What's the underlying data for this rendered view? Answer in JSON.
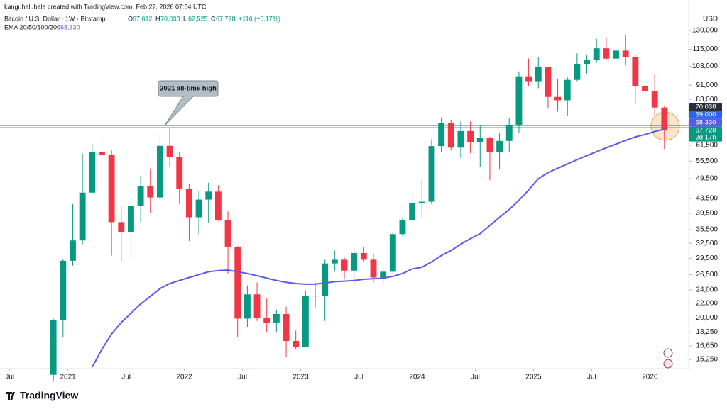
{
  "chart_data": {
    "type": "candlestick",
    "watermark": "kanguhalubale created with TradingView.com, Feb 27, 2026 07:54 UTC",
    "title": "Bitcoin / U.S. Dollar · 1W · Bitstamp",
    "ohlc": [
      {
        "key": "O",
        "value": "67,612"
      },
      {
        "key": "H",
        "value": "70,038"
      },
      {
        "key": "L",
        "value": "62,525"
      },
      {
        "key": "C",
        "value": "67,728"
      }
    ],
    "change": "+116 (+0.17%)",
    "indicator": "EMA 20/50/100/200",
    "indicator_value": "68,330",
    "currency": "USD",
    "annotation": "2021 all-time high",
    "brand": "TradingView",
    "log": true,
    "grid": false,
    "up_color": "#089981",
    "down_color": "#f23645",
    "x": [
      "2020-11",
      "2020-12",
      "2021-01",
      "2021-02",
      "2021-03",
      "2021-04",
      "2021-05",
      "2021-06",
      "2021-07",
      "2021-08",
      "2021-09",
      "2021-10",
      "2021-11",
      "2021-12",
      "2022-01",
      "2022-02",
      "2022-03",
      "2022-04",
      "2022-05",
      "2022-06",
      "2022-07",
      "2022-08",
      "2022-09",
      "2022-10",
      "2022-11",
      "2022-12",
      "2023-01",
      "2023-02",
      "2023-03",
      "2023-04",
      "2023-05",
      "2023-06",
      "2023-07",
      "2023-08",
      "2023-09",
      "2023-10",
      "2023-11",
      "2023-12",
      "2024-01",
      "2024-02",
      "2024-03",
      "2024-04",
      "2024-05",
      "2024-06",
      "2024-07",
      "2024-08",
      "2024-09",
      "2024-10",
      "2024-11",
      "2024-12",
      "2025-01",
      "2025-02",
      "2025-03",
      "2025-04",
      "2025-05",
      "2025-06",
      "2025-07",
      "2025-08",
      "2025-09",
      "2025-10",
      "2025-11",
      "2025-12",
      "2026-01",
      "2026-02"
    ],
    "open": [
      13800,
      19700,
      29000,
      33100,
      45200,
      58800,
      57700,
      37300,
      35000,
      41500,
      47100,
      43800,
      61300,
      57000,
      46200,
      38500,
      43200,
      45500,
      37700,
      31800,
      19900,
      23300,
      20000,
      19400,
      20500,
      17200,
      16500,
      23100,
      23100,
      28500,
      29200,
      27200,
      30500,
      29200,
      26000,
      27000,
      34500,
      37700,
      42300,
      42600,
      61200,
      71300,
      60600,
      67500,
      62700,
      64600,
      59000,
      63300,
      70200,
      96400,
      93400,
      102400,
      84300,
      82500,
      94200,
      104600,
      107100,
      115700,
      108200,
      114000,
      109500,
      90400,
      87500,
      78700
    ],
    "high": [
      19900,
      29300,
      41900,
      58300,
      61700,
      64800,
      59500,
      41300,
      42400,
      50500,
      52900,
      67000,
      69000,
      59100,
      47900,
      45800,
      48200,
      47400,
      40000,
      31900,
      24700,
      25200,
      22800,
      21100,
      21500,
      18400,
      23900,
      25200,
      29200,
      31000,
      29800,
      31400,
      31800,
      30200,
      27500,
      35000,
      38400,
      44700,
      48900,
      64000,
      73800,
      72700,
      71900,
      71900,
      70000,
      65000,
      66500,
      73600,
      99600,
      108300,
      109600,
      102500,
      95000,
      95800,
      112000,
      110500,
      123200,
      124400,
      117900,
      126200,
      110600,
      94600,
      97900,
      79500
    ],
    "low": [
      13200,
      17600,
      28100,
      32300,
      45000,
      47000,
      30000,
      28800,
      29300,
      37300,
      39600,
      43300,
      53300,
      42000,
      33000,
      34300,
      37200,
      37600,
      26700,
      17600,
      18800,
      19600,
      18200,
      18200,
      15500,
      16300,
      16500,
      21400,
      19600,
      27000,
      25800,
      24800,
      28900,
      25200,
      24900,
      26500,
      34000,
      37600,
      38500,
      41900,
      59000,
      59600,
      56600,
      58400,
      53500,
      49000,
      52500,
      58900,
      66800,
      90500,
      89200,
      78200,
      76600,
      74400,
      93400,
      98200,
      105300,
      107300,
      107300,
      103500,
      80600,
      84400,
      74500,
      60000
    ],
    "close": [
      19700,
      29000,
      33100,
      45200,
      58800,
      57700,
      37300,
      35000,
      41500,
      47100,
      43800,
      61300,
      57000,
      46200,
      38500,
      43200,
      45500,
      37700,
      31800,
      19900,
      23300,
      20000,
      19400,
      20500,
      17200,
      16500,
      23100,
      23100,
      28500,
      29200,
      27200,
      30500,
      29200,
      26000,
      27000,
      34500,
      37700,
      42300,
      42600,
      61200,
      71300,
      60600,
      67500,
      62700,
      64600,
      59000,
      63300,
      70200,
      96400,
      93400,
      102400,
      84300,
      82500,
      94200,
      104600,
      107100,
      115700,
      108200,
      114000,
      109500,
      90400,
      87500,
      78700,
      67728
    ],
    "series": [
      {
        "name": "EMA 200",
        "color": "#5b58eb",
        "values": [
          null,
          null,
          null,
          null,
          14500,
          16300,
          18000,
          19400,
          20600,
          21900,
          23000,
          24200,
          25000,
          25500,
          26000,
          26500,
          27000,
          27200,
          27300,
          27000,
          26700,
          26300,
          25900,
          25500,
          25200,
          25000,
          24900,
          24900,
          25100,
          25300,
          25400,
          25500,
          25700,
          25800,
          25900,
          26200,
          26700,
          27500,
          27800,
          28800,
          30000,
          31000,
          32300,
          33500,
          34600,
          36500,
          38500,
          40500,
          43000,
          46000,
          49500,
          51500,
          53000,
          54500,
          56000,
          57500,
          59000,
          60500,
          62000,
          63500,
          65000,
          66000,
          67300,
          68330
        ]
      }
    ],
    "xlim": [
      "2020-06",
      "2026-05"
    ],
    "xticks": [
      {
        "value": "2020-07",
        "label": "Jul"
      },
      {
        "value": "2021-01",
        "label": "2021"
      },
      {
        "value": "2021-07",
        "label": "Jul"
      },
      {
        "value": "2022-01",
        "label": "2022"
      },
      {
        "value": "2022-07",
        "label": "Jul"
      },
      {
        "value": "2023-01",
        "label": "2023"
      },
      {
        "value": "2023-07",
        "label": "Jul"
      },
      {
        "value": "2024-01",
        "label": "2024"
      },
      {
        "value": "2024-07",
        "label": "Jul"
      },
      {
        "value": "2025-01",
        "label": "2025"
      },
      {
        "value": "2025-07",
        "label": "Jul"
      },
      {
        "value": "2026-01",
        "label": "2026"
      }
    ],
    "ylim": [
      14500,
      143200
    ],
    "yticks": [
      {
        "value": 130000,
        "label": "130,000"
      },
      {
        "value": 115000,
        "label": "115,000"
      },
      {
        "value": 103000,
        "label": "103,000"
      },
      {
        "value": 91000,
        "label": "91,000"
      },
      {
        "value": 83000,
        "label": "83,000"
      },
      {
        "value": 61500,
        "label": "61,500"
      },
      {
        "value": 55500,
        "label": "55,500"
      },
      {
        "value": 49500,
        "label": "49,500"
      },
      {
        "value": 43500,
        "label": "43,500"
      },
      {
        "value": 39500,
        "label": "39,500"
      },
      {
        "value": 35500,
        "label": "35,500"
      },
      {
        "value": 32500,
        "label": "32,500"
      },
      {
        "value": 29500,
        "label": "29,500"
      },
      {
        "value": 26500,
        "label": "26,500"
      },
      {
        "value": 24000,
        "label": "24,000"
      },
      {
        "value": 22000,
        "label": "22,000"
      },
      {
        "value": 20000,
        "label": "20,000"
      },
      {
        "value": 18250,
        "label": "18,250"
      },
      {
        "value": 16650,
        "label": "16,650"
      },
      {
        "value": 15250,
        "label": "15,250"
      }
    ],
    "price_labels": [
      {
        "value": 70038,
        "label": "70,038",
        "color": "#2a2e39",
        "line_color": "#2a2e39"
      },
      {
        "value": 69000,
        "label": "69,000",
        "color": "#2962ff",
        "line_color": "#2962ff"
      },
      {
        "value": 68330,
        "label": "68,330",
        "color": "#5b58eb"
      },
      {
        "value": 67728,
        "label": "67,728",
        "color": "#089981",
        "countdown": "2d 17h"
      }
    ]
  }
}
